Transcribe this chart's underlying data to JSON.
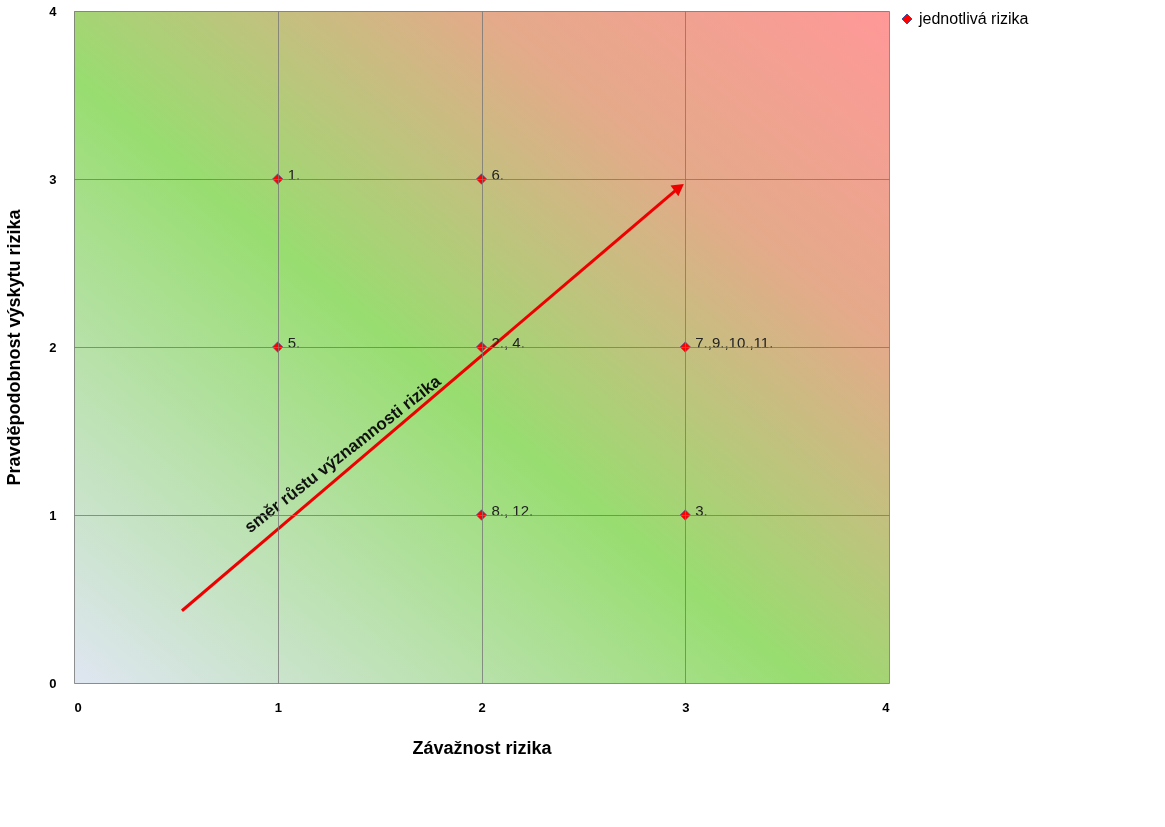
{
  "chart_data": {
    "type": "scatter",
    "xlabel": "Závažnost rizika",
    "ylabel": "Pravděpodobnost  výskytu rizika",
    "x": [
      1,
      2,
      1,
      2,
      3,
      2,
      3
    ],
    "series": [
      {
        "name": "jednotlivá rizika",
        "color": "#ff0000",
        "values": [
          3,
          3,
          2,
          2,
          2,
          1,
          1
        ]
      }
    ],
    "xlim": [
      0,
      4
    ],
    "ylim": [
      0,
      4
    ],
    "xticks": [
      0,
      1,
      2,
      3,
      4
    ],
    "yticks": [
      0,
      1,
      2,
      3,
      4
    ],
    "grid": true,
    "legend": "right",
    "marker": "diamond",
    "annotations": [
      {
        "text": "1.",
        "x": 1,
        "y": 3
      },
      {
        "text": "6.",
        "x": 2,
        "y": 3
      },
      {
        "text": "5.",
        "x": 1,
        "y": 2
      },
      {
        "text": "2., 4.",
        "x": 2,
        "y": 2
      },
      {
        "text": "7.,9.,10.,11.",
        "x": 3,
        "y": 2
      },
      {
        "text": "8., 12.",
        "x": 2,
        "y": 1
      },
      {
        "text": "3.",
        "x": 3,
        "y": 1
      },
      "směr růstu významnosti rizika"
    ]
  }
}
